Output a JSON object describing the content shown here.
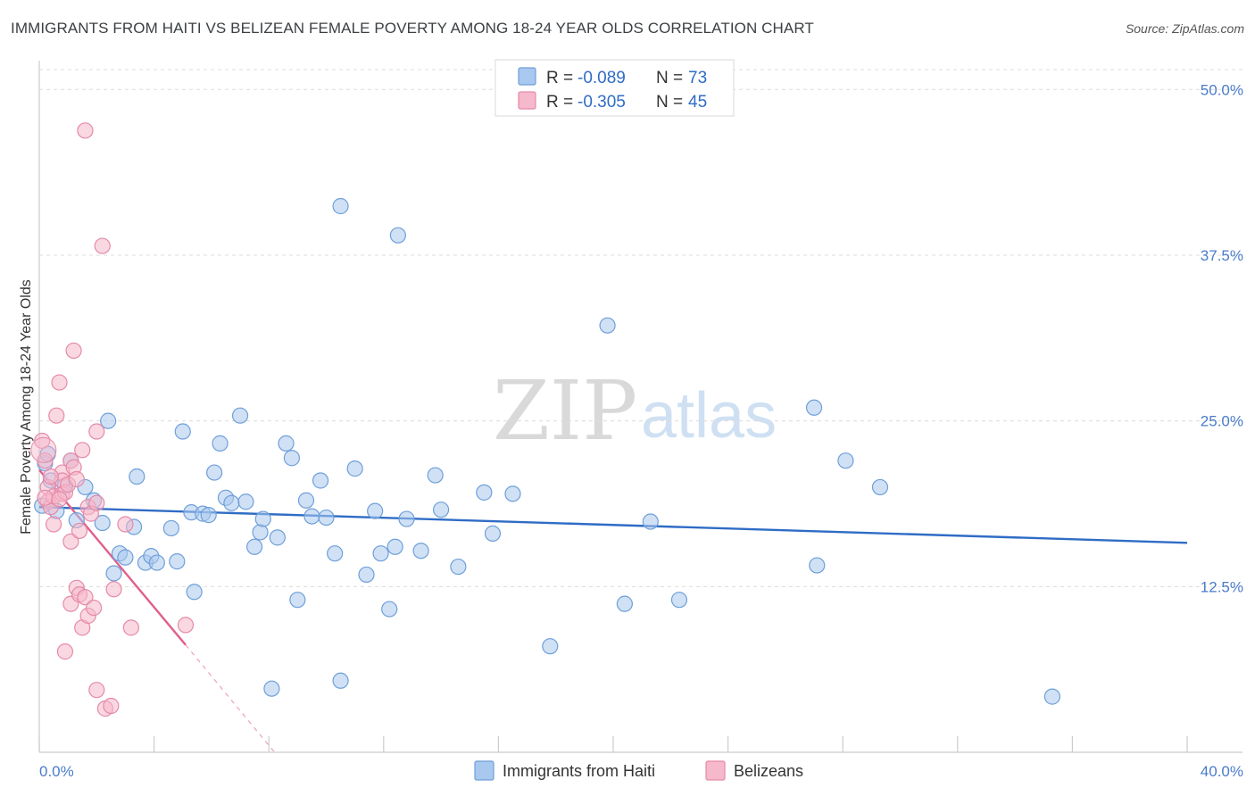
{
  "header": {
    "title": "IMMIGRANTS FROM HAITI VS BELIZEAN FEMALE POVERTY AMONG 18-24 YEAR OLDS CORRELATION CHART",
    "source": "Source: ZipAtlas.com"
  },
  "watermark": {
    "zip": "ZIP",
    "atlas": "atlas"
  },
  "colors": {
    "haiti_fill": "#a9c8ef",
    "haiti_stroke": "#6f9fd8",
    "haiti_line": "#2f6cc5",
    "belize_fill": "#f6b8cb",
    "belize_stroke": "#e58aa8",
    "belize_line": "#e0608c",
    "grid": "#dcdcdc",
    "tick_text": "#4a7cc9"
  },
  "legend_top": {
    "rows": [
      {
        "r_label": "R = ",
        "r_value": "-0.089",
        "n_label": "N = ",
        "n_value": "73"
      },
      {
        "r_label": "R = ",
        "r_value": "-0.305",
        "n_label": "N = ",
        "n_value": "45"
      }
    ]
  },
  "legend_bottom": {
    "items": [
      {
        "label": "Immigrants from Haiti"
      },
      {
        "label": "Belizeans"
      }
    ]
  },
  "chart_data": {
    "type": "scatter",
    "title": "IMMIGRANTS FROM HAITI VS BELIZEAN FEMALE POVERTY AMONG 18-24 YEAR OLDS CORRELATION CHART",
    "xlabel": "",
    "ylabel": "Female Poverty Among 18-24 Year Olds",
    "xlim": [
      0,
      40
    ],
    "ylim": [
      0,
      50
    ],
    "x_tick_labels": [
      "0.0%",
      "40.0%"
    ],
    "y_ticks": [
      12.5,
      25.0,
      37.5,
      50.0
    ],
    "y_tick_labels": [
      "12.5%",
      "25.0%",
      "37.5%",
      "50.0%"
    ],
    "grid": true,
    "legend_placement": "top-center",
    "series": [
      {
        "name": "Immigrants from Haiti",
        "r": -0.089,
        "n": 73,
        "trend": {
          "x": [
            0,
            40
          ],
          "y": [
            18.5,
            15.8
          ]
        },
        "points": [
          [
            0.2,
            21.8
          ],
          [
            0.4,
            20.5
          ],
          [
            0.6,
            18.2
          ],
          [
            0.9,
            20.1
          ],
          [
            1.1,
            22.0
          ],
          [
            1.3,
            17.5
          ],
          [
            1.9,
            19.0
          ],
          [
            2.2,
            17.3
          ],
          [
            2.4,
            25.0
          ],
          [
            2.6,
            13.5
          ],
          [
            2.8,
            15.0
          ],
          [
            3.0,
            14.7
          ],
          [
            3.3,
            17.0
          ],
          [
            3.4,
            20.8
          ],
          [
            3.7,
            14.3
          ],
          [
            3.9,
            14.8
          ],
          [
            4.1,
            14.3
          ],
          [
            4.6,
            16.9
          ],
          [
            4.8,
            14.4
          ],
          [
            5.0,
            24.2
          ],
          [
            5.3,
            18.1
          ],
          [
            5.4,
            12.1
          ],
          [
            5.7,
            18.0
          ],
          [
            5.9,
            17.9
          ],
          [
            6.1,
            21.1
          ],
          [
            6.3,
            23.3
          ],
          [
            6.5,
            19.2
          ],
          [
            6.7,
            18.8
          ],
          [
            7.0,
            25.4
          ],
          [
            7.2,
            18.9
          ],
          [
            7.5,
            15.5
          ],
          [
            7.7,
            16.6
          ],
          [
            7.8,
            17.6
          ],
          [
            8.1,
            4.8
          ],
          [
            8.3,
            16.2
          ],
          [
            8.6,
            23.3
          ],
          [
            8.8,
            22.2
          ],
          [
            9.0,
            11.5
          ],
          [
            9.3,
            19.0
          ],
          [
            9.5,
            17.8
          ],
          [
            9.8,
            20.5
          ],
          [
            10.0,
            17.7
          ],
          [
            10.3,
            15.0
          ],
          [
            10.5,
            5.4
          ],
          [
            10.5,
            41.2
          ],
          [
            11.0,
            21.4
          ],
          [
            11.4,
            13.4
          ],
          [
            11.7,
            18.2
          ],
          [
            11.9,
            15.0
          ],
          [
            12.2,
            10.8
          ],
          [
            12.5,
            39.0
          ],
          [
            12.4,
            15.5
          ],
          [
            12.8,
            17.6
          ],
          [
            13.3,
            15.2
          ],
          [
            13.8,
            20.9
          ],
          [
            14.0,
            18.3
          ],
          [
            14.6,
            14.0
          ],
          [
            15.5,
            19.6
          ],
          [
            15.8,
            16.5
          ],
          [
            16.5,
            19.5
          ],
          [
            17.8,
            8.0
          ],
          [
            19.8,
            32.2
          ],
          [
            20.4,
            11.2
          ],
          [
            21.3,
            17.4
          ],
          [
            22.3,
            11.5
          ],
          [
            27.0,
            26.0
          ],
          [
            27.1,
            14.1
          ],
          [
            28.1,
            22.0
          ],
          [
            29.3,
            20.0
          ],
          [
            35.3,
            4.2
          ],
          [
            0.1,
            18.6
          ],
          [
            0.3,
            22.5
          ],
          [
            1.6,
            20.0
          ]
        ]
      },
      {
        "name": "Belizeans",
        "r": -0.305,
        "n": 45,
        "trend": {
          "x": [
            0,
            5.1
          ],
          "y": [
            21.3,
            8.1
          ]
        },
        "trend_dashed": {
          "x": [
            5.1,
            8.2
          ],
          "y": [
            8.1,
            0
          ]
        },
        "points": [
          [
            0.1,
            23.5
          ],
          [
            0.2,
            22.0
          ],
          [
            0.3,
            20.0
          ],
          [
            0.3,
            18.9
          ],
          [
            0.4,
            18.5
          ],
          [
            0.5,
            17.2
          ],
          [
            0.5,
            19.3
          ],
          [
            0.6,
            25.4
          ],
          [
            0.7,
            27.9
          ],
          [
            0.8,
            19.5
          ],
          [
            0.8,
            21.1
          ],
          [
            0.8,
            20.5
          ],
          [
            0.9,
            19.6
          ],
          [
            0.9,
            7.6
          ],
          [
            1.0,
            20.2
          ],
          [
            1.1,
            11.2
          ],
          [
            1.1,
            15.9
          ],
          [
            1.1,
            22.0
          ],
          [
            1.2,
            30.3
          ],
          [
            1.2,
            21.5
          ],
          [
            1.3,
            20.6
          ],
          [
            1.3,
            12.4
          ],
          [
            1.4,
            16.7
          ],
          [
            1.4,
            11.9
          ],
          [
            1.5,
            9.4
          ],
          [
            1.5,
            22.8
          ],
          [
            1.6,
            11.7
          ],
          [
            1.7,
            10.3
          ],
          [
            1.7,
            18.5
          ],
          [
            1.6,
            46.9
          ],
          [
            1.8,
            18.0
          ],
          [
            1.9,
            10.9
          ],
          [
            2.0,
            4.7
          ],
          [
            2.0,
            18.8
          ],
          [
            2.0,
            24.2
          ],
          [
            2.2,
            38.2
          ],
          [
            2.3,
            3.3
          ],
          [
            2.5,
            3.5
          ],
          [
            2.6,
            12.3
          ],
          [
            3.0,
            17.2
          ],
          [
            3.2,
            9.4
          ],
          [
            5.1,
            9.6
          ],
          [
            0.2,
            19.2
          ],
          [
            0.4,
            20.8
          ],
          [
            0.7,
            19.1
          ]
        ]
      }
    ]
  }
}
